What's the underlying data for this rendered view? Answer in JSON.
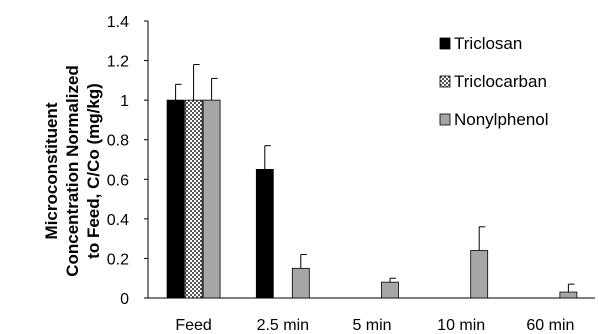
{
  "chart_data": {
    "type": "bar",
    "categories": [
      "Feed",
      "2.5 min",
      "5 min",
      "10 min",
      "60 min"
    ],
    "ylabel_lines": [
      "Microconstituent",
      "Concentration Normalized",
      "to Feed, C/Co (mg/kg)"
    ],
    "ylim": [
      0,
      1.4
    ],
    "yticks": [
      "0",
      "0.2",
      "0.4",
      "0.6",
      "0.8",
      "1",
      "1.2",
      "1.4"
    ],
    "grid": false,
    "legend_position": "top-right",
    "series": [
      {
        "name": "Triclosan",
        "pattern": "solid",
        "color": "#000000",
        "values": [
          1.0,
          0.65,
          null,
          null,
          null
        ],
        "errors": [
          0.08,
          0.12,
          null,
          null,
          null
        ]
      },
      {
        "name": "Triclocarban",
        "pattern": "checker",
        "color": "#555555",
        "values": [
          1.0,
          null,
          null,
          null,
          null
        ],
        "errors": [
          0.18,
          null,
          null,
          null,
          null
        ]
      },
      {
        "name": "Nonylphenol",
        "pattern": "solid",
        "color": "#a6a6a6",
        "values": [
          1.0,
          0.15,
          0.08,
          0.24,
          0.03
        ],
        "errors": [
          0.11,
          0.07,
          0.02,
          0.12,
          0.04
        ]
      }
    ]
  }
}
